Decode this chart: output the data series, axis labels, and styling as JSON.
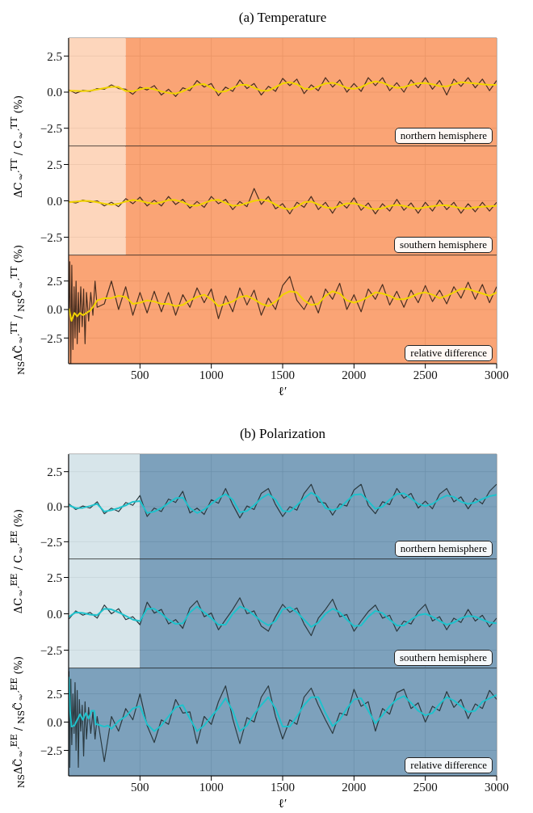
{
  "chart_data": [
    {
      "type": "line",
      "title": "(a) Temperature",
      "ylabel": "ΔC$_{ℓ′}$$^{TT}$ / C$_{ℓ′}$$^{TT}$ (%)",
      "xlim": [
        0,
        3000
      ],
      "xticks": [
        500,
        1000,
        1500,
        2000,
        2500,
        3000
      ],
      "ylim": [
        -3.75,
        3.75
      ],
      "yticks": [
        {
          "value": -2.5,
          "label": "−2.5"
        },
        {
          "value": 0,
          "label": "0.0"
        },
        {
          "value": 2.5,
          "label": "2.5"
        }
      ],
      "grid": true,
      "tick_labels": "y",
      "annotations": [
        "northern hemisphere"
      ],
      "bands": [
        {
          "axis": "x",
          "from": 0,
          "to": 400,
          "color": "#fdd2b5"
        },
        {
          "axis": "x",
          "from": 400,
          "to": 3000,
          "color": "#f99a66"
        }
      ],
      "x": [
        2,
        50,
        100,
        150,
        200,
        250,
        300,
        350,
        400,
        450,
        500,
        550,
        600,
        650,
        700,
        750,
        800,
        850,
        900,
        950,
        1000,
        1050,
        1100,
        1150,
        1200,
        1250,
        1300,
        1350,
        1400,
        1450,
        1500,
        1550,
        1600,
        1650,
        1700,
        1750,
        1800,
        1850,
        1900,
        1950,
        2000,
        2050,
        2100,
        2150,
        2200,
        2250,
        2300,
        2350,
        2400,
        2450,
        2500,
        2550,
        2600,
        2650,
        2700,
        2750,
        2800,
        2850,
        2900,
        2950,
        3000
      ],
      "series": [
        {
          "type": "line",
          "color": "#4a2f20",
          "values": [
            0.15,
            -0.08,
            0.12,
            0.05,
            0.25,
            0.2,
            0.5,
            0.25,
            0.2,
            -0.15,
            0.35,
            0.15,
            0.45,
            -0.2,
            0.2,
            -0.3,
            0.3,
            0.1,
            0.8,
            0.35,
            0.6,
            -0.25,
            0.35,
            0.05,
            0.85,
            0.25,
            0.6,
            -0.2,
            0.4,
            0.05,
            0.95,
            0.45,
            0.9,
            -0.1,
            0.5,
            0.1,
            1.0,
            0.35,
            0.85,
            0.0,
            0.6,
            0.05,
            1.0,
            0.45,
            1.0,
            0.1,
            0.65,
            0.0,
            0.85,
            0.3,
            1.0,
            0.2,
            0.8,
            -0.2,
            0.9,
            0.4,
            1.0,
            0.3,
            0.9,
            0.1,
            0.8
          ]
        },
        {
          "type": "line",
          "color": "#f2d400",
          "values": [
            0.1,
            0.08,
            0.07,
            0.1,
            0.18,
            0.28,
            0.36,
            0.36,
            0.08,
            0.05,
            0.2,
            0.3,
            0.2,
            0.05,
            -0.05,
            -0.1,
            0.05,
            0.3,
            0.52,
            0.56,
            0.3,
            0.02,
            0.05,
            0.3,
            0.5,
            0.5,
            0.3,
            0.1,
            0.1,
            0.35,
            0.6,
            0.69,
            0.55,
            0.25,
            0.2,
            0.4,
            0.6,
            0.65,
            0.5,
            0.3,
            0.23,
            0.35,
            0.6,
            0.74,
            0.65,
            0.45,
            0.3,
            0.35,
            0.5,
            0.62,
            0.63,
            0.55,
            0.42,
            0.39,
            0.55,
            0.69,
            0.65,
            0.6,
            0.55,
            0.5,
            0.5
          ]
        }
      ]
    },
    {
      "type": "line",
      "xlim": [
        0,
        3000
      ],
      "xticks": [
        500,
        1000,
        1500,
        2000,
        2500,
        3000
      ],
      "ylim": [
        -3.75,
        3.75
      ],
      "yticks": [
        {
          "value": -2.5,
          "label": "−2.5"
        },
        {
          "value": 0,
          "label": "0.0"
        },
        {
          "value": 2.5,
          "label": "2.5"
        }
      ],
      "grid": true,
      "tick_labels": "y",
      "annotations": [
        "southern hemisphere"
      ],
      "bands": [
        {
          "axis": "x",
          "from": 0,
          "to": 400,
          "color": "#fdd2b5"
        },
        {
          "axis": "x",
          "from": 400,
          "to": 3000,
          "color": "#f99a66"
        }
      ],
      "x": [
        2,
        50,
        100,
        150,
        200,
        250,
        300,
        350,
        400,
        450,
        500,
        550,
        600,
        650,
        700,
        750,
        800,
        850,
        900,
        950,
        1000,
        1050,
        1100,
        1150,
        1200,
        1250,
        1300,
        1350,
        1400,
        1450,
        1500,
        1550,
        1600,
        1650,
        1700,
        1750,
        1800,
        1850,
        1900,
        1950,
        2000,
        2050,
        2100,
        2150,
        2200,
        2250,
        2300,
        2350,
        2400,
        2450,
        2500,
        2550,
        2600,
        2650,
        2700,
        2750,
        2800,
        2850,
        2900,
        2950,
        3000
      ],
      "series": [
        {
          "type": "line",
          "color": "#4a2f20",
          "values": [
            -0.05,
            -0.15,
            0.05,
            -0.1,
            0.0,
            -0.35,
            -0.1,
            -0.4,
            0.15,
            -0.2,
            0.25,
            -0.35,
            0.05,
            -0.35,
            0.3,
            -0.25,
            0.1,
            -0.5,
            -0.05,
            -0.45,
            0.3,
            -0.2,
            0.1,
            -0.6,
            -0.05,
            -0.4,
            0.85,
            -0.25,
            0.3,
            -0.55,
            -0.2,
            -0.9,
            -0.1,
            -0.45,
            0.3,
            -0.6,
            -0.1,
            -0.85,
            -0.05,
            -0.5,
            0.2,
            -0.65,
            -0.15,
            -0.9,
            -0.2,
            -0.7,
            0.1,
            -0.65,
            -0.15,
            -0.85,
            -0.1,
            -0.7,
            0.05,
            -0.6,
            -0.1,
            -0.85,
            -0.2,
            -0.75,
            -0.1,
            -0.7,
            -0.1
          ]
        },
        {
          "type": "line",
          "color": "#f2d400",
          "values": [
            -0.1,
            -0.05,
            0.0,
            -0.02,
            -0.1,
            -0.2,
            -0.27,
            -0.2,
            -0.05,
            0.05,
            0.0,
            -0.12,
            -0.19,
            -0.1,
            0.05,
            0.05,
            -0.1,
            -0.3,
            -0.34,
            -0.15,
            0.03,
            0.07,
            -0.15,
            -0.33,
            -0.3,
            -0.15,
            0.0,
            0.07,
            0.0,
            -0.25,
            -0.5,
            -0.58,
            -0.4,
            -0.1,
            -0.05,
            -0.25,
            -0.45,
            -0.51,
            -0.35,
            -0.18,
            -0.17,
            -0.3,
            -0.5,
            -0.58,
            -0.5,
            -0.35,
            -0.28,
            -0.35,
            -0.48,
            -0.53,
            -0.45,
            -0.38,
            -0.3,
            -0.3,
            -0.4,
            -0.5,
            -0.53,
            -0.45,
            -0.4,
            -0.37,
            -0.35
          ]
        }
      ]
    },
    {
      "type": "line",
      "xlabel": "ℓ′",
      "ylabel": "$_{NS}$ΔC̃$_{ℓ′}$$^{TT}$ / $_{NS}$C̃$_{ℓ′}$$^{TT}$ (%)",
      "xlim": [
        0,
        3000
      ],
      "xticks": [
        500,
        1000,
        1500,
        2000,
        2500,
        3000
      ],
      "ylim": [
        -4.75,
        4.75
      ],
      "yticks": [
        {
          "value": -2.5,
          "label": "−2.5"
        },
        {
          "value": 0,
          "label": "0.0"
        },
        {
          "value": 2.5,
          "label": "2.5"
        }
      ],
      "grid": true,
      "annotations": [
        "relative difference"
      ],
      "bands": [
        {
          "axis": "x",
          "from": 0,
          "to": 3000,
          "color": "#f99a66"
        }
      ],
      "series": [
        {
          "type": "line",
          "color": "#4a2f20",
          "x": [
            2,
            8,
            15,
            22,
            30,
            38,
            45,
            52,
            60,
            68,
            75,
            85,
            95,
            105,
            115,
            125,
            140,
            155,
            170,
            185,
            200,
            250,
            300,
            350,
            400,
            450,
            500,
            550,
            600,
            650,
            700,
            750,
            800,
            850,
            900,
            950,
            1000,
            1050,
            1100,
            1150,
            1200,
            1250,
            1300,
            1350,
            1400,
            1450,
            1500,
            1550,
            1600,
            1650,
            1700,
            1750,
            1800,
            1850,
            1900,
            1950,
            2000,
            2050,
            2100,
            2150,
            2200,
            2250,
            2300,
            2350,
            2400,
            2450,
            2500,
            2550,
            2600,
            2650,
            2700,
            2750,
            2800,
            2850,
            2900,
            2950,
            3000
          ],
          "values": [
            0,
            4.2,
            -4.75,
            3.9,
            -3.5,
            2.0,
            -2.5,
            2.5,
            -3.0,
            1.5,
            -2.0,
            2.0,
            -1.5,
            1.8,
            -3.0,
            1.5,
            -1.0,
            1.5,
            -0.5,
            2.5,
            0.2,
            0.5,
            2.5,
            0.0,
            2.0,
            -0.5,
            1.5,
            -0.3,
            1.6,
            -0.2,
            1.5,
            -0.5,
            1.3,
            0.2,
            1.9,
            0.6,
            1.8,
            -0.8,
            1.2,
            -0.2,
            1.9,
            0.4,
            1.7,
            -0.5,
            1.0,
            0.0,
            2.1,
            2.9,
            0.8,
            0.0,
            1.2,
            -0.3,
            1.8,
            0.9,
            2.3,
            0.0,
            1.3,
            -0.2,
            1.8,
            0.9,
            2.2,
            0.4,
            1.6,
            0.2,
            1.7,
            0.6,
            2.1,
            0.7,
            1.7,
            0.5,
            2.0,
            1.0,
            2.4,
            0.9,
            2.2,
            0.6,
            2.0
          ]
        },
        {
          "type": "line",
          "color": "#f2d400",
          "x": [
            2,
            20,
            40,
            60,
            80,
            100,
            125,
            150,
            175,
            200,
            250,
            300,
            350,
            400,
            450,
            500,
            550,
            600,
            650,
            700,
            750,
            800,
            850,
            900,
            950,
            1000,
            1050,
            1100,
            1150,
            1200,
            1250,
            1300,
            1350,
            1400,
            1450,
            1500,
            1550,
            1600,
            1650,
            1700,
            1750,
            1800,
            1850,
            1900,
            1950,
            2000,
            2050,
            2100,
            2150,
            2200,
            2250,
            2300,
            2350,
            2400,
            2450,
            2500,
            2550,
            2600,
            2650,
            2700,
            2750,
            2800,
            2850,
            2900,
            2950,
            3000
          ],
          "values": [
            0.1,
            -1.0,
            -0.3,
            -0.6,
            -0.3,
            -0.5,
            -0.3,
            -0.1,
            0.3,
            0.8,
            1.0,
            1.0,
            1.2,
            1.1,
            0.5,
            0.6,
            0.8,
            0.7,
            0.5,
            0.5,
            0.3,
            0.4,
            0.8,
            1.1,
            1.3,
            0.9,
            0.3,
            0.5,
            0.7,
            1.1,
            1.2,
            0.9,
            0.5,
            0.3,
            0.7,
            1.3,
            1.6,
            1.5,
            0.8,
            0.4,
            0.5,
            1.2,
            1.6,
            1.4,
            0.8,
            0.6,
            0.8,
            1.1,
            1.5,
            1.4,
            1.2,
            0.9,
            0.9,
            1.1,
            1.4,
            1.5,
            1.3,
            1.0,
            1.2,
            1.5,
            1.8,
            1.8,
            1.6,
            1.4,
            1.2,
            1.5
          ]
        }
      ]
    },
    {
      "type": "line",
      "title": "(b) Polarization",
      "ylabel": "ΔC$_{ℓ′}$$^{EE}$ / C$_{ℓ′}$$^{EE}$ (%)",
      "xlim": [
        0,
        3000
      ],
      "xticks": [
        500,
        1000,
        1500,
        2000,
        2500,
        3000
      ],
      "ylim": [
        -3.75,
        3.75
      ],
      "yticks": [
        {
          "value": -2.5,
          "label": "−2.5"
        },
        {
          "value": 0,
          "label": "0.0"
        },
        {
          "value": 2.5,
          "label": "2.5"
        }
      ],
      "grid": true,
      "tick_labels": "y",
      "annotations": [
        "northern hemisphere"
      ],
      "bands": [
        {
          "axis": "x",
          "from": 0,
          "to": 500,
          "color": "#d3e2e8"
        },
        {
          "axis": "x",
          "from": 500,
          "to": 3000,
          "color": "#6f97b5"
        }
      ],
      "x": [
        2,
        50,
        100,
        150,
        200,
        250,
        300,
        350,
        400,
        450,
        500,
        550,
        600,
        650,
        700,
        750,
        800,
        850,
        900,
        950,
        1000,
        1050,
        1100,
        1150,
        1200,
        1250,
        1300,
        1350,
        1400,
        1450,
        1500,
        1550,
        1600,
        1650,
        1700,
        1750,
        1800,
        1850,
        1900,
        1950,
        2000,
        2050,
        2100,
        2150,
        2200,
        2250,
        2300,
        2350,
        2400,
        2450,
        2500,
        2550,
        2600,
        2650,
        2700,
        2750,
        2800,
        2850,
        2900,
        2950,
        3000
      ],
      "series": [
        {
          "type": "line",
          "color": "#2b3a40",
          "values": [
            0.2,
            -0.2,
            0.05,
            -0.1,
            0.35,
            -0.5,
            -0.1,
            -0.35,
            0.3,
            0.1,
            0.8,
            -0.7,
            -0.1,
            -0.35,
            0.55,
            0.3,
            1.1,
            -0.45,
            -0.1,
            -0.55,
            0.5,
            0.25,
            1.3,
            0.15,
            -0.8,
            0.05,
            -0.2,
            0.95,
            1.3,
            0.15,
            -0.7,
            0.0,
            -0.25,
            0.95,
            1.6,
            0.35,
            0.25,
            -0.6,
            0.2,
            0.05,
            1.2,
            1.6,
            0.1,
            -0.5,
            0.35,
            0.15,
            1.3,
            0.6,
            0.95,
            -0.1,
            0.4,
            -0.15,
            0.9,
            1.3,
            0.35,
            0.7,
            -0.15,
            0.6,
            0.2,
            1.1,
            1.6
          ]
        },
        {
          "type": "line",
          "color": "#20c2cc",
          "values": [
            0.1,
            -0.1,
            -0.08,
            0.05,
            0.2,
            -0.35,
            -0.25,
            -0.1,
            0.1,
            0.35,
            0.4,
            -0.45,
            -0.35,
            -0.1,
            0.25,
            0.6,
            0.65,
            -0.1,
            -0.45,
            -0.2,
            0.2,
            0.6,
            0.9,
            0.5,
            -0.4,
            -0.3,
            0.1,
            0.6,
            0.9,
            0.5,
            -0.3,
            -0.35,
            0.1,
            0.6,
            1.0,
            0.7,
            -0.1,
            -0.25,
            -0.1,
            0.4,
            0.85,
            0.9,
            0.4,
            -0.15,
            0.0,
            0.5,
            0.9,
            0.95,
            0.6,
            0.2,
            0.05,
            0.2,
            0.55,
            0.8,
            0.7,
            0.35,
            0.2,
            0.3,
            0.55,
            0.75,
            0.85
          ]
        }
      ]
    },
    {
      "type": "line",
      "xlim": [
        0,
        3000
      ],
      "xticks": [
        500,
        1000,
        1500,
        2000,
        2500,
        3000
      ],
      "ylim": [
        -3.75,
        3.75
      ],
      "yticks": [
        {
          "value": -2.5,
          "label": "−2.5"
        },
        {
          "value": 0,
          "label": "0.0"
        },
        {
          "value": 2.5,
          "label": "2.5"
        }
      ],
      "grid": true,
      "tick_labels": "y",
      "annotations": [
        "southern hemisphere"
      ],
      "bands": [
        {
          "axis": "x",
          "from": 0,
          "to": 500,
          "color": "#d3e2e8"
        },
        {
          "axis": "x",
          "from": 500,
          "to": 3000,
          "color": "#6f97b5"
        }
      ],
      "x": [
        2,
        50,
        100,
        150,
        200,
        250,
        300,
        350,
        400,
        450,
        500,
        550,
        600,
        650,
        700,
        750,
        800,
        850,
        900,
        950,
        1000,
        1050,
        1100,
        1150,
        1200,
        1250,
        1300,
        1350,
        1400,
        1450,
        1500,
        1550,
        1600,
        1650,
        1700,
        1750,
        1800,
        1850,
        1900,
        1950,
        2000,
        2050,
        2100,
        2150,
        2200,
        2250,
        2300,
        2350,
        2400,
        2450,
        2500,
        2550,
        2600,
        2650,
        2700,
        2750,
        2800,
        2850,
        2900,
        2950,
        3000
      ],
      "series": [
        {
          "type": "line",
          "color": "#2b3a40",
          "values": [
            -0.35,
            0.2,
            -0.1,
            0.1,
            -0.3,
            0.6,
            0.0,
            0.35,
            -0.4,
            -0.2,
            -0.75,
            0.8,
            0.05,
            0.3,
            -0.7,
            -0.4,
            -1.0,
            0.4,
            0.9,
            -0.2,
            0.05,
            -1.1,
            -0.4,
            0.3,
            1.1,
            0.0,
            0.2,
            -0.85,
            -1.2,
            -0.2,
            0.65,
            0.1,
            0.4,
            -0.7,
            -1.5,
            -0.3,
            0.3,
            1.0,
            -0.2,
            -0.05,
            -1.2,
            -0.5,
            0.15,
            0.6,
            -0.3,
            -0.1,
            -1.2,
            -0.5,
            -0.7,
            0.15,
            0.65,
            -0.5,
            -0.2,
            -1.1,
            -0.3,
            -0.6,
            0.3,
            -0.5,
            -0.1,
            -0.9,
            -0.3
          ]
        },
        {
          "type": "line",
          "color": "#20c2cc",
          "values": [
            -0.2,
            0.1,
            0.05,
            -0.05,
            -0.1,
            0.35,
            0.3,
            0.1,
            -0.15,
            -0.4,
            -0.5,
            0.35,
            0.35,
            0.0,
            -0.4,
            -0.7,
            -0.65,
            0.1,
            0.5,
            0.1,
            -0.3,
            -0.75,
            -0.75,
            0.0,
            0.5,
            0.3,
            -0.1,
            -0.5,
            -0.8,
            -0.5,
            0.3,
            0.45,
            0.1,
            -0.4,
            -0.9,
            -0.6,
            0.0,
            0.35,
            0.1,
            -0.4,
            -0.85,
            -0.8,
            -0.2,
            0.2,
            0.05,
            -0.4,
            -0.8,
            -0.8,
            -0.4,
            -0.1,
            0.0,
            -0.2,
            -0.5,
            -0.75,
            -0.6,
            -0.3,
            -0.15,
            -0.2,
            -0.4,
            -0.6,
            -0.65
          ]
        }
      ]
    },
    {
      "type": "line",
      "xlabel": "ℓ′",
      "ylabel": "$_{NS}$ΔC̃$_{ℓ′}$$^{EE}$ / $_{NS}$C̃$_{ℓ′}$$^{EE}$ (%)",
      "xlim": [
        0,
        3000
      ],
      "xticks": [
        500,
        1000,
        1500,
        2000,
        2500,
        3000
      ],
      "ylim": [
        -4.75,
        4.75
      ],
      "yticks": [
        {
          "value": -2.5,
          "label": "−2.5"
        },
        {
          "value": 0,
          "label": "0.0"
        },
        {
          "value": 2.5,
          "label": "2.5"
        }
      ],
      "grid": true,
      "annotations": [
        "relative difference"
      ],
      "bands": [
        {
          "axis": "x",
          "from": 0,
          "to": 3000,
          "color": "#6f97b5"
        }
      ],
      "series": [
        {
          "type": "line",
          "color": "#2b3a40",
          "x": [
            2,
            8,
            15,
            22,
            30,
            38,
            45,
            52,
            60,
            68,
            75,
            85,
            95,
            105,
            115,
            125,
            140,
            155,
            170,
            185,
            200,
            250,
            300,
            350,
            400,
            450,
            500,
            550,
            600,
            650,
            700,
            750,
            800,
            850,
            900,
            950,
            1000,
            1050,
            1100,
            1150,
            1200,
            1250,
            1300,
            1350,
            1400,
            1450,
            1500,
            1550,
            1600,
            1650,
            1700,
            1750,
            1800,
            1850,
            1900,
            1950,
            2000,
            2050,
            2100,
            2150,
            2200,
            2250,
            2300,
            2350,
            2400,
            2450,
            2500,
            2550,
            2600,
            2650,
            2700,
            2750,
            2800,
            2850,
            2900,
            2950,
            3000
          ],
          "values": [
            4.5,
            -4.0,
            3.8,
            -2.0,
            2.5,
            -1.0,
            3.5,
            -2.5,
            2.8,
            -4.0,
            2.0,
            -0.8,
            1.5,
            -3.0,
            1.8,
            -1.5,
            1.3,
            -1.0,
            0.9,
            -1.5,
            0.5,
            -3.5,
            0.5,
            -0.8,
            1.2,
            0.2,
            2.5,
            -0.3,
            -1.8,
            0.2,
            -0.2,
            2.0,
            0.8,
            0.9,
            -1.9,
            0.5,
            -0.2,
            1.8,
            3.2,
            0.3,
            -1.9,
            0.4,
            0.0,
            2.2,
            3.2,
            0.5,
            -1.5,
            0.2,
            -0.2,
            2.2,
            3.0,
            1.5,
            0.2,
            -1.0,
            0.8,
            0.6,
            2.9,
            1.4,
            1.8,
            -0.8,
            1.2,
            0.7,
            2.6,
            2.9,
            1.2,
            1.7,
            0.0,
            1.4,
            1.0,
            2.7,
            1.3,
            2.0,
            0.3,
            1.6,
            1.2,
            2.8,
            2.0
          ]
        },
        {
          "type": "line",
          "color": "#20c2cc",
          "x": [
            2,
            10,
            20,
            40,
            60,
            80,
            100,
            120,
            140,
            160,
            180,
            190,
            200,
            225,
            250,
            275,
            300,
            350,
            400,
            450,
            500,
            550,
            600,
            650,
            700,
            750,
            800,
            850,
            900,
            950,
            1000,
            1050,
            1100,
            1150,
            1200,
            1250,
            1300,
            1350,
            1400,
            1450,
            1500,
            1550,
            1600,
            1650,
            1700,
            1750,
            1800,
            1850,
            1900,
            1950,
            2000,
            2050,
            2100,
            2150,
            2200,
            2250,
            2300,
            2350,
            2400,
            2450,
            2500,
            2550,
            2600,
            2650,
            2700,
            2750,
            2800,
            2850,
            2900,
            2950,
            3000
          ],
          "values": [
            4.0,
            1.0,
            -0.4,
            -0.3,
            0.2,
            0.7,
            0.2,
            0.8,
            0.3,
            1.0,
            1.0,
            -0.2,
            -0.2,
            -0.3,
            -0.4,
            -0.3,
            -0.6,
            0.1,
            0.5,
            1.2,
            1.4,
            -0.2,
            -0.8,
            -0.3,
            0.5,
            1.3,
            1.5,
            0.3,
            -0.8,
            -0.3,
            0.5,
            1.2,
            2.1,
            1.0,
            -0.8,
            -0.3,
            0.7,
            1.5,
            2.2,
            1.2,
            -0.4,
            -0.4,
            0.5,
            1.5,
            2.2,
            2.2,
            0.8,
            -0.35,
            0.2,
            1.2,
            2.0,
            2.1,
            1.0,
            -0.1,
            0.6,
            1.4,
            2.0,
            2.3,
            1.7,
            1.0,
            0.6,
            0.8,
            1.6,
            2.2,
            1.9,
            1.4,
            0.9,
            1.0,
            1.8,
            2.1,
            2.4
          ]
        }
      ]
    }
  ]
}
